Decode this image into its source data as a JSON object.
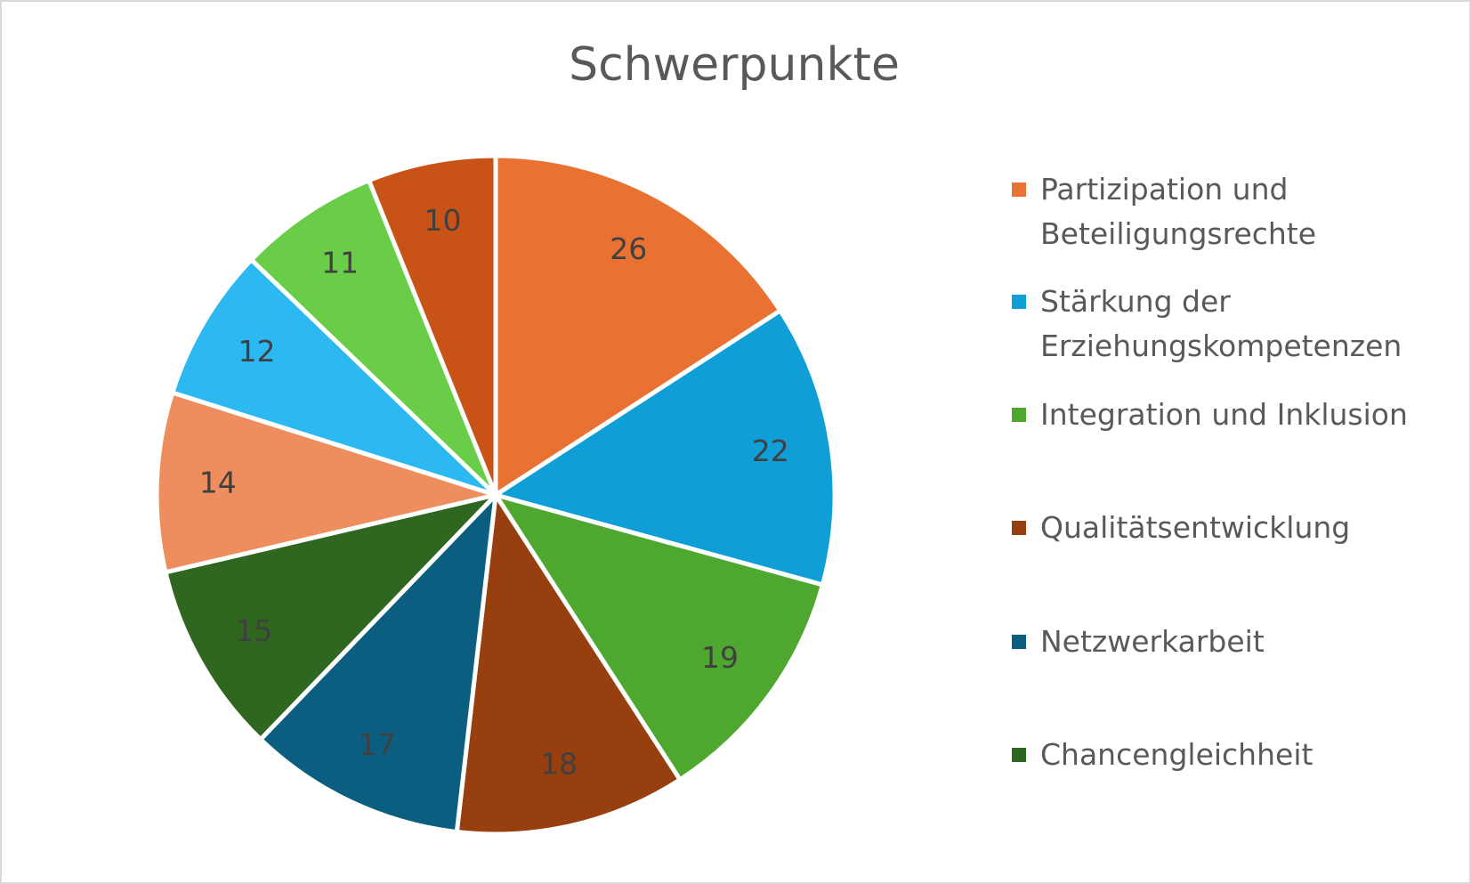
{
  "chart_data": {
    "type": "pie",
    "title": "Schwerpunkte",
    "categories": [
      "Partizipation und Beteiligungsrechte",
      "Stärkung der Erziehungskompetenzen",
      "Integration und Inklusion",
      "Qualitätsentwicklung",
      "Netzwerkarbeit",
      "Chancengleichheit",
      null,
      null,
      null,
      null
    ],
    "values": [
      26,
      22,
      19,
      18,
      17,
      15,
      14,
      12,
      11,
      10
    ],
    "colors": [
      "#e97132",
      "#0f9ed5",
      "#4ea72e",
      "#973f0e",
      "#0b5e80",
      "#2f6620",
      "#ee8d5e",
      "#2cb8f0",
      "#6acd48",
      "#c95216"
    ],
    "legend": "right"
  }
}
